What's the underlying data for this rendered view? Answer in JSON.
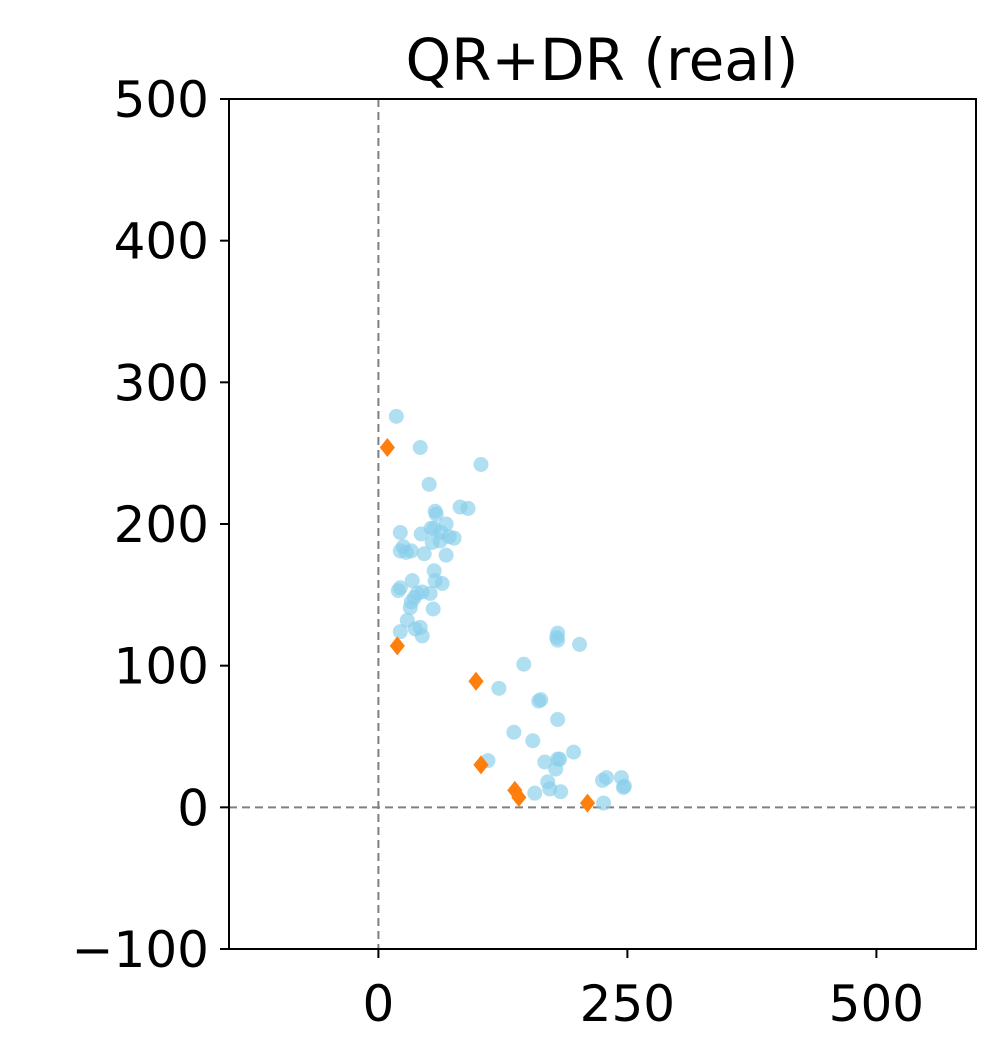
{
  "chart_data": {
    "type": "scatter",
    "title": "QR+DR (real)",
    "xlabel": "",
    "ylabel": "",
    "xlim": [
      -150,
      600
    ],
    "ylim": [
      -100,
      500
    ],
    "xticks": [
      0,
      250,
      500
    ],
    "yticks": [
      -100,
      0,
      100,
      200,
      300,
      400,
      500
    ],
    "xtick_labels": [
      "0",
      "250",
      "500"
    ],
    "ytick_labels": [
      "−100",
      "0",
      "100",
      "200",
      "300",
      "400",
      "500"
    ],
    "grid": false,
    "legend": "none",
    "reference_lines": {
      "x": 0,
      "y": 0,
      "style": "dashed",
      "color": "#808080"
    },
    "series": [
      {
        "marker": "circle",
        "color": "#87CEEB",
        "opacity": 0.65,
        "points": [
          [
            18,
            276
          ],
          [
            42,
            254
          ],
          [
            51,
            228
          ],
          [
            103,
            242
          ],
          [
            82,
            212
          ],
          [
            90,
            211
          ],
          [
            57,
            209
          ],
          [
            58,
            207
          ],
          [
            53,
            197
          ],
          [
            56,
            197
          ],
          [
            68,
            200
          ],
          [
            63,
            194
          ],
          [
            71,
            191
          ],
          [
            76,
            190
          ],
          [
            62,
            188
          ],
          [
            54,
            187
          ],
          [
            43,
            193
          ],
          [
            22,
            194
          ],
          [
            25,
            184
          ],
          [
            28,
            180
          ],
          [
            22,
            181
          ],
          [
            33,
            181
          ],
          [
            46,
            179
          ],
          [
            68,
            178
          ],
          [
            56,
            167
          ],
          [
            57,
            160
          ],
          [
            64,
            158
          ],
          [
            34,
            160
          ],
          [
            39,
            151
          ],
          [
            36,
            148
          ],
          [
            44,
            152
          ],
          [
            52,
            151
          ],
          [
            22,
            155
          ],
          [
            20,
            153
          ],
          [
            33,
            145
          ],
          [
            32,
            141
          ],
          [
            55,
            140
          ],
          [
            29,
            132
          ],
          [
            37,
            126
          ],
          [
            42,
            127
          ],
          [
            44,
            121
          ],
          [
            22,
            124
          ],
          [
            180,
            123
          ],
          [
            179,
            120
          ],
          [
            180,
            118
          ],
          [
            202,
            115
          ],
          [
            146,
            101
          ],
          [
            121,
            84
          ],
          [
            161,
            75
          ],
          [
            163,
            76
          ],
          [
            180,
            62
          ],
          [
            136,
            53
          ],
          [
            155,
            47
          ],
          [
            196,
            39
          ],
          [
            182,
            34
          ],
          [
            180,
            34
          ],
          [
            167,
            32
          ],
          [
            110,
            33
          ],
          [
            178,
            27
          ],
          [
            170,
            18
          ],
          [
            172,
            13
          ],
          [
            183,
            11
          ],
          [
            157,
            10
          ],
          [
            225,
            19
          ],
          [
            229,
            21
          ],
          [
            244,
            21
          ],
          [
            247,
            15
          ],
          [
            246,
            14
          ],
          [
            226,
            3
          ]
        ]
      },
      {
        "marker": "diamond",
        "color": "#FF7F0E",
        "opacity": 1.0,
        "points": [
          [
            9,
            254
          ],
          [
            19,
            114
          ],
          [
            98,
            89
          ],
          [
            103,
            30
          ],
          [
            137,
            12
          ],
          [
            141,
            7
          ],
          [
            210,
            3
          ]
        ]
      }
    ]
  }
}
